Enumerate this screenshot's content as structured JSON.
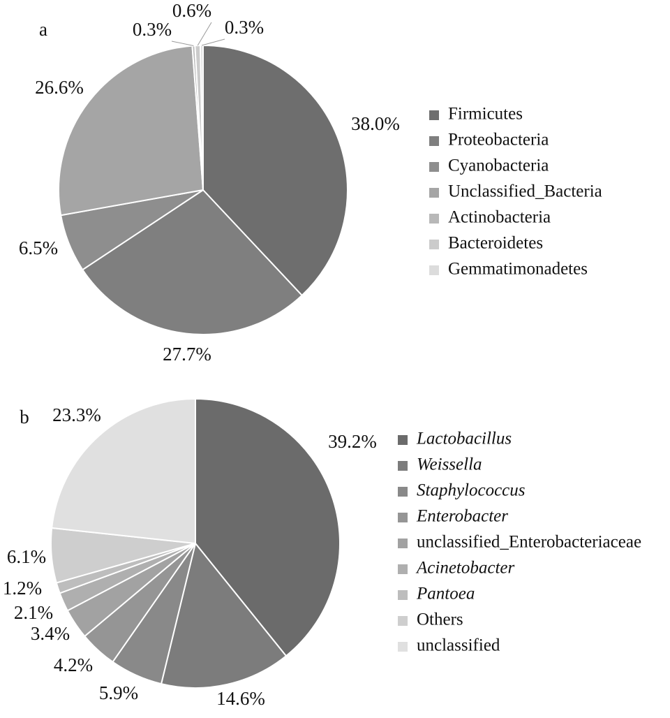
{
  "chart_data": [
    {
      "type": "pie",
      "panel": "a",
      "categories": [
        "Firmicutes",
        "Proteobacteria",
        "Cyanobacteria",
        "Unclassified_Bacteria",
        "Actinobacteria",
        "Bacteroidetes",
        "Gemmatimonadetes"
      ],
      "values": [
        38.0,
        27.7,
        6.5,
        26.6,
        0.3,
        0.6,
        0.3
      ],
      "value_labels": [
        "38.0%",
        "27.7%",
        "6.5%",
        "26.6%",
        "0.3%",
        "0.6%",
        "0.3%"
      ],
      "colors": [
        "#6e6e6e",
        "#7f7f7f",
        "#8e8e8e",
        "#a5a5a5",
        "#b8b8b8",
        "#cbcbcb",
        "#dcdcdc"
      ],
      "italic": [
        false,
        false,
        false,
        false,
        false,
        false,
        false
      ]
    },
    {
      "type": "pie",
      "panel": "b",
      "categories": [
        "Lactobacillus",
        "Weissella",
        "Staphylococcus",
        "Enterobacter",
        "unclassified_Enterobacteriaceae",
        "Acinetobacter",
        "Pantoea",
        "Others",
        "unclassified"
      ],
      "values": [
        39.2,
        14.6,
        5.9,
        4.2,
        3.4,
        2.1,
        1.2,
        6.1,
        23.3
      ],
      "value_labels": [
        "39.2%",
        "14.6%",
        "5.9%",
        "4.2%",
        "3.4%",
        "2.1%",
        "1.2%",
        "6.1%",
        "23.3%"
      ],
      "colors": [
        "#6b6b6b",
        "#7c7c7c",
        "#898989",
        "#959595",
        "#a2a2a2",
        "#afafaf",
        "#bdbdbd",
        "#cecece",
        "#e0e0e0"
      ],
      "italic": [
        true,
        true,
        true,
        true,
        false,
        true,
        true,
        false,
        false
      ]
    }
  ]
}
